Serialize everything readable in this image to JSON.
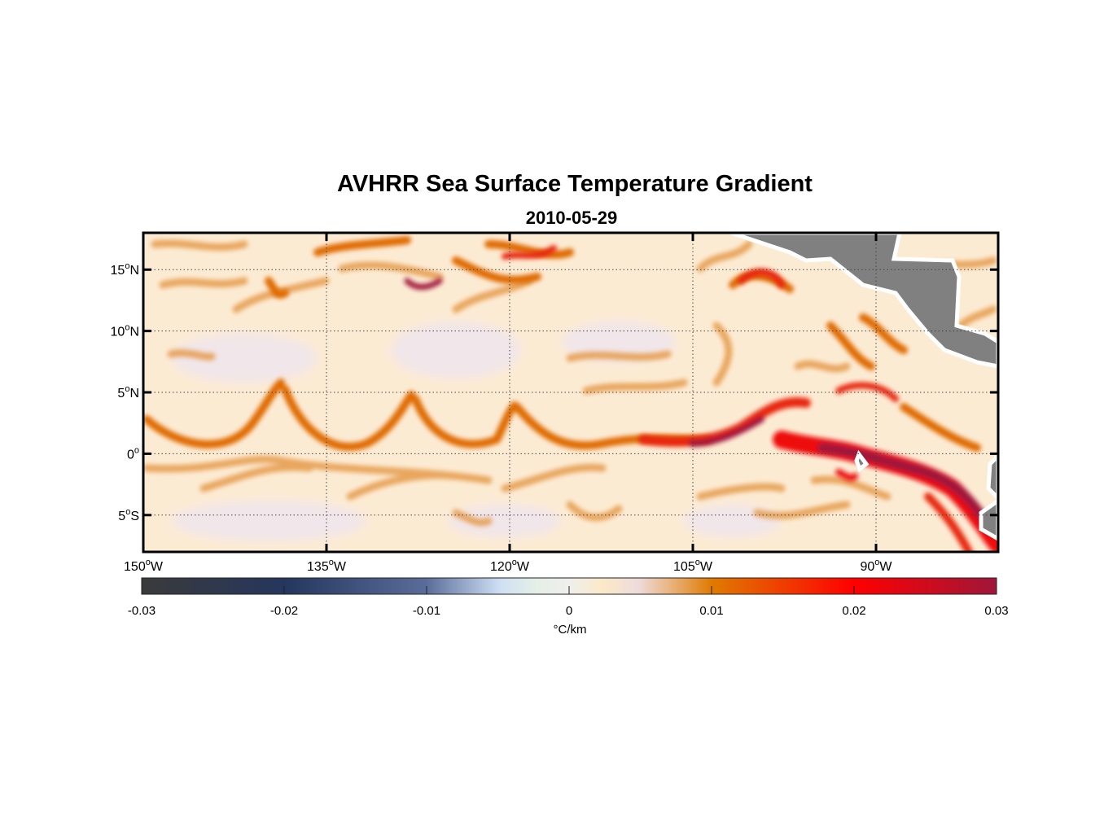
{
  "chart_data": {
    "type": "heatmap",
    "title": "AVHRR Sea Surface Temperature Gradient",
    "subtitle": "2010-05-29",
    "lon_range": [
      -150,
      -80
    ],
    "lat_range": [
      -8,
      18
    ],
    "grid": true,
    "x_ticks": [
      {
        "value": -150,
        "deg": "150",
        "hemi": "W"
      },
      {
        "value": -135,
        "deg": "135",
        "hemi": "W"
      },
      {
        "value": -120,
        "deg": "120",
        "hemi": "W"
      },
      {
        "value": -105,
        "deg": "105",
        "hemi": "W"
      },
      {
        "value": -90,
        "deg": "90",
        "hemi": "W"
      }
    ],
    "y_ticks": [
      {
        "value": 15,
        "deg": "15",
        "hemi": "N"
      },
      {
        "value": 10,
        "deg": "10",
        "hemi": "N"
      },
      {
        "value": 5,
        "deg": "5",
        "hemi": "N"
      },
      {
        "value": 0,
        "deg": "0",
        "hemi": ""
      },
      {
        "value": -5,
        "deg": "5",
        "hemi": "S"
      }
    ],
    "colorbar": {
      "label": "°C/km",
      "range": [
        -0.03,
        0.03
      ],
      "ticks": [
        "-0.03",
        "-0.02",
        "-0.01",
        "0",
        "0.01",
        "0.02",
        "0.03"
      ],
      "colors": [
        "#3a3a3a",
        "#25365e",
        "#5a6d9a",
        "#cfe0f5",
        "#f0efed",
        "#fbe8c8",
        "#e07a00",
        "#ff0000",
        "#a0163a"
      ]
    },
    "land_color": "#808080"
  }
}
